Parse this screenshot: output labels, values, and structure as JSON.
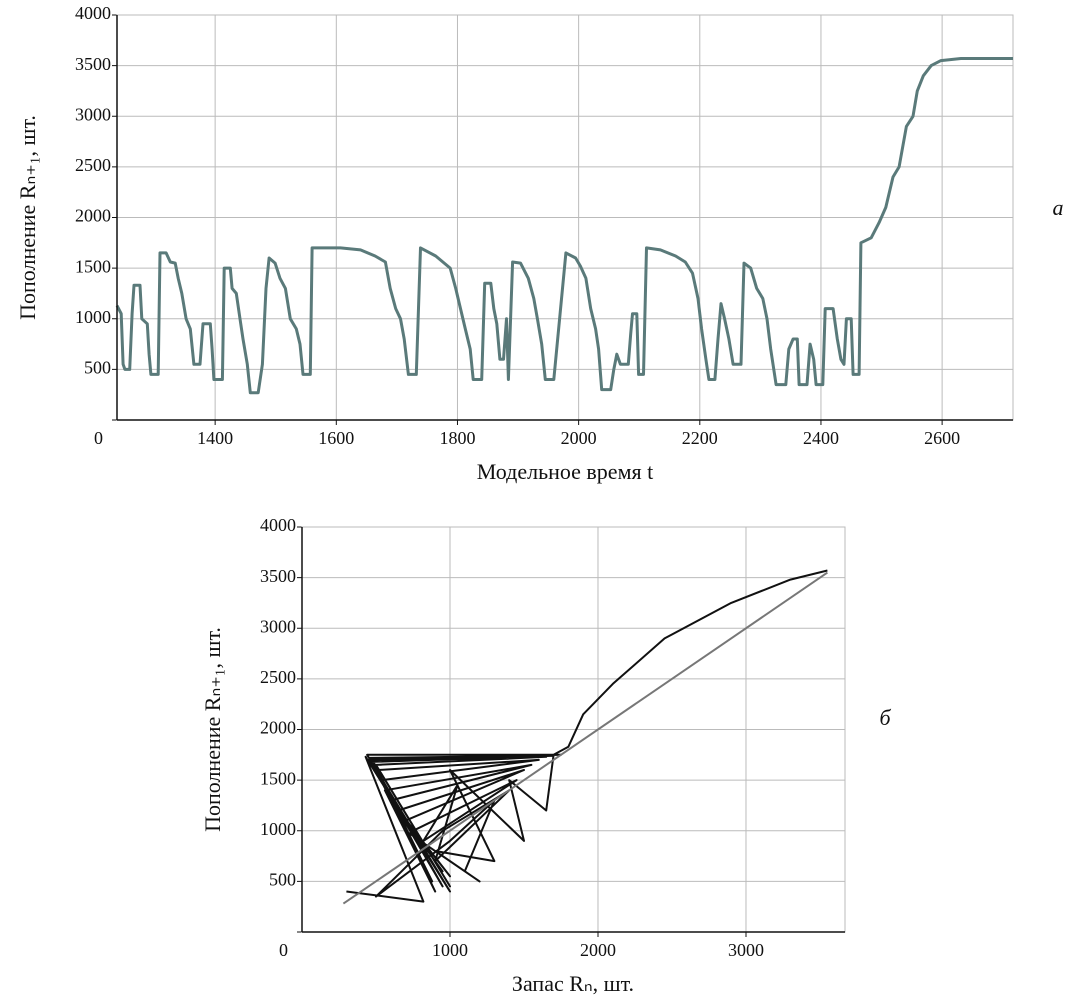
{
  "chart_data": [
    {
      "type": "line",
      "xlabel": "Модельное время t",
      "ylabel": "Пополнение Rₙ₊₁, шт.",
      "annotation": "a",
      "xlim": [
        1238,
        2717
      ],
      "xticks": [
        1400,
        1600,
        1800,
        2000,
        2200,
        2400,
        2600
      ],
      "ylim": [
        0,
        4000
      ],
      "yticks": [
        0,
        500,
        1000,
        1500,
        2000,
        2500,
        3000,
        3500,
        4000
      ],
      "grid": true,
      "series": [
        {
          "color": "#5a7a7a",
          "x": [
            1238,
            1245,
            1248,
            1251,
            1259,
            1263,
            1266,
            1276,
            1279,
            1288,
            1291,
            1294,
            1306,
            1309,
            1319,
            1326,
            1334,
            1339,
            1345,
            1352,
            1359,
            1365,
            1375,
            1380,
            1392,
            1395,
            1398,
            1412,
            1415,
            1425,
            1428,
            1435,
            1441,
            1446,
            1453,
            1458,
            1471,
            1478,
            1484,
            1489,
            1499,
            1507,
            1516,
            1524,
            1534,
            1540,
            1545,
            1557,
            1560,
            1607,
            1640,
            1664,
            1681,
            1689,
            1698,
            1706,
            1712,
            1719,
            1732,
            1739,
            1764,
            1788,
            1797,
            1805,
            1813,
            1821,
            1826,
            1840,
            1845,
            1855,
            1860,
            1865,
            1870,
            1876,
            1881,
            1884,
            1891,
            1904,
            1917,
            1926,
            1932,
            1939,
            1945,
            1959,
            1979,
            1995,
            2003,
            2012,
            2020,
            2028,
            2033,
            2038,
            2053,
            2058,
            2063,
            2069,
            2082,
            2086,
            2089,
            2096,
            2099,
            2107,
            2112,
            2135,
            2160,
            2176,
            2188,
            2197,
            2203,
            2210,
            2215,
            2225,
            2230,
            2235,
            2241,
            2248,
            2255,
            2268,
            2273,
            2284,
            2294,
            2304,
            2311,
            2317,
            2326,
            2342,
            2347,
            2354,
            2361,
            2364,
            2377,
            2382,
            2388,
            2392,
            2403,
            2407,
            2420,
            2427,
            2433,
            2438,
            2442,
            2450,
            2453,
            2463,
            2466,
            2483,
            2496,
            2507,
            2519,
            2529,
            2541,
            2552,
            2559,
            2569,
            2582,
            2598,
            2631,
            2717
          ],
          "values": [
            1130,
            1050,
            550,
            500,
            500,
            1050,
            1330,
            1330,
            1000,
            950,
            650,
            450,
            450,
            1650,
            1650,
            1560,
            1550,
            1400,
            1250,
            1000,
            900,
            550,
            550,
            950,
            950,
            700,
            400,
            400,
            1500,
            1500,
            1300,
            1250,
            1000,
            800,
            550,
            270,
            270,
            550,
            1300,
            1600,
            1550,
            1400,
            1300,
            1000,
            900,
            750,
            450,
            450,
            1700,
            1700,
            1680,
            1620,
            1560,
            1300,
            1100,
            1000,
            800,
            450,
            450,
            1700,
            1620,
            1500,
            1300,
            1100,
            900,
            700,
            400,
            400,
            1350,
            1350,
            1100,
            950,
            600,
            600,
            1000,
            400,
            1560,
            1550,
            1400,
            1200,
            1000,
            750,
            400,
            400,
            1650,
            1600,
            1520,
            1400,
            1100,
            900,
            700,
            300,
            300,
            500,
            650,
            550,
            550,
            850,
            1050,
            1050,
            450,
            450,
            1700,
            1680,
            1620,
            1560,
            1450,
            1200,
            900,
            600,
            400,
            400,
            800,
            1150,
            1000,
            800,
            550,
            550,
            1550,
            1500,
            1300,
            1200,
            1000,
            700,
            350,
            350,
            700,
            800,
            800,
            350,
            350,
            750,
            600,
            350,
            350,
            1100,
            1100,
            800,
            600,
            550,
            1000,
            1000,
            450,
            450,
            1750,
            1800,
            1950,
            2100,
            2400,
            2500,
            2900,
            3000,
            3250,
            3400,
            3500,
            3550,
            3570,
            3570
          ]
        }
      ]
    },
    {
      "type": "line",
      "xlabel": "Запас Rₙ, шт.",
      "ylabel": "Пополнение Rₙ₊₁, шт.",
      "annotation": "б",
      "xlim": [
        0,
        3669
      ],
      "xticks": [
        1000,
        2000,
        3000
      ],
      "ylim": [
        0,
        4000
      ],
      "yticks": [
        0,
        500,
        1000,
        1500,
        2000,
        2500,
        3000,
        3500,
        4000
      ],
      "grid": true,
      "series": [
        {
          "color": "#111111",
          "x": [
            300,
            820,
            430,
            1000,
            440,
            1750,
            450,
            950,
            460,
            1700,
            470,
            880,
            480,
            1650,
            500,
            1000,
            520,
            1600,
            540,
            900,
            560,
            1550,
            600,
            1000,
            650,
            1500,
            700,
            950,
            750,
            1450,
            820,
            1050,
            900,
            1400,
            950,
            500,
            1000,
            1300,
            1100,
            700,
            1200,
            900,
            1300,
            1000,
            1500,
            1400,
            1650,
            1700,
            1800,
            1900,
            2100,
            2450,
            2900,
            3300,
            3550
          ],
          "values": [
            400,
            300,
            1730,
            400,
            1750,
            1750,
            1700,
            450,
            1720,
            1740,
            1680,
            500,
            1690,
            1730,
            1650,
            450,
            1600,
            1700,
            1500,
            400,
            1400,
            1650,
            1300,
            550,
            1200,
            1600,
            1100,
            600,
            1000,
            1500,
            900,
            1450,
            700,
            1400,
            1000,
            350,
            900,
            1300,
            600,
            1000,
            500,
            800,
            700,
            1600,
            900,
            1500,
            1200,
            1750,
            1830,
            2150,
            2450,
            2900,
            3250,
            3480,
            3570
          ]
        },
        {
          "color": "#777777",
          "x": [
            280,
            3550
          ],
          "values": [
            280,
            3550
          ]
        }
      ]
    }
  ]
}
